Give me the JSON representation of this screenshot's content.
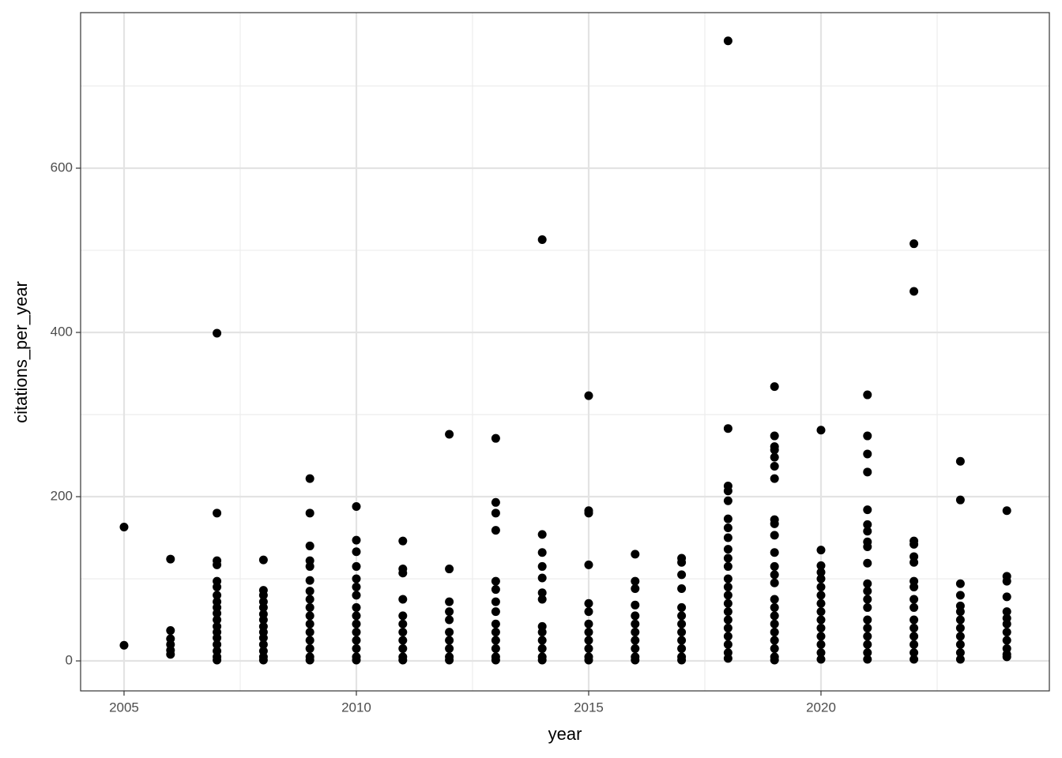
{
  "chart_data": {
    "type": "scatter",
    "x_label": "year",
    "y_label": "citations_per_year",
    "xlim": [
      2004.065,
      2024.915
    ],
    "ylim": [
      -36.5,
      789.4
    ],
    "xticks": [
      2005,
      2010,
      2015,
      2020
    ],
    "yticks": [
      0,
      200,
      400,
      600
    ],
    "x_minor_grid": [
      2007.5,
      2012.5,
      2017.5,
      2022.5
    ],
    "y_minor_grid": [
      100,
      300,
      500,
      700
    ],
    "grid": true,
    "color": "#000000",
    "x": [
      2005,
      2005,
      2006,
      2006,
      2006,
      2006,
      2006,
      2006,
      2007,
      2007,
      2007,
      2007,
      2007,
      2007,
      2007,
      2007,
      2007,
      2007,
      2007,
      2007,
      2007,
      2007,
      2007,
      2007,
      2007,
      2007,
      2008,
      2008,
      2008,
      2008,
      2008,
      2008,
      2008,
      2008,
      2008,
      2008,
      2008,
      2008,
      2008,
      2008,
      2009,
      2009,
      2009,
      2009,
      2009,
      2009,
      2009,
      2009,
      2009,
      2009,
      2009,
      2009,
      2009,
      2009,
      2009,
      2009,
      2010,
      2010,
      2010,
      2010,
      2010,
      2010,
      2010,
      2010,
      2010,
      2010,
      2010,
      2010,
      2010,
      2010,
      2010,
      2011,
      2011,
      2011,
      2011,
      2011,
      2011,
      2011,
      2011,
      2011,
      2011,
      2011,
      2012,
      2012,
      2012,
      2012,
      2012,
      2012,
      2012,
      2012,
      2012,
      2012,
      2013,
      2013,
      2013,
      2013,
      2013,
      2013,
      2013,
      2013,
      2013,
      2013,
      2013,
      2013,
      2013,
      2013,
      2014,
      2014,
      2014,
      2014,
      2014,
      2014,
      2014,
      2014,
      2014,
      2014,
      2014,
      2014,
      2014,
      2015,
      2015,
      2015,
      2015,
      2015,
      2015,
      2015,
      2015,
      2015,
      2015,
      2015,
      2015,
      2016,
      2016,
      2016,
      2016,
      2016,
      2016,
      2016,
      2016,
      2016,
      2016,
      2016,
      2017,
      2017,
      2017,
      2017,
      2017,
      2017,
      2017,
      2017,
      2017,
      2017,
      2017,
      2017,
      2018,
      2018,
      2018,
      2018,
      2018,
      2018,
      2018,
      2018,
      2018,
      2018,
      2018,
      2018,
      2018,
      2018,
      2018,
      2018,
      2018,
      2018,
      2018,
      2018,
      2018,
      2018,
      2019,
      2019,
      2019,
      2019,
      2019,
      2019,
      2019,
      2019,
      2019,
      2019,
      2019,
      2019,
      2019,
      2019,
      2019,
      2019,
      2019,
      2019,
      2019,
      2019,
      2019,
      2019,
      2019,
      2020,
      2020,
      2020,
      2020,
      2020,
      2020,
      2020,
      2020,
      2020,
      2020,
      2020,
      2020,
      2020,
      2020,
      2020,
      2021,
      2021,
      2021,
      2021,
      2021,
      2021,
      2021,
      2021,
      2021,
      2021,
      2021,
      2021,
      2021,
      2021,
      2021,
      2021,
      2021,
      2021,
      2021,
      2021,
      2022,
      2022,
      2022,
      2022,
      2022,
      2022,
      2022,
      2022,
      2022,
      2022,
      2022,
      2022,
      2022,
      2022,
      2022,
      2022,
      2023,
      2023,
      2023,
      2023,
      2023,
      2023,
      2023,
      2023,
      2023,
      2023,
      2023,
      2023,
      2024,
      2024,
      2024,
      2024,
      2024,
      2024,
      2024,
      2024,
      2024,
      2024,
      2024,
      2024
    ],
    "values": [
      163,
      19,
      124,
      37,
      27,
      20,
      13,
      8,
      399,
      180,
      122,
      117,
      97,
      90,
      80,
      72,
      65,
      58,
      50,
      42,
      35,
      28,
      20,
      12,
      5,
      1,
      123,
      86,
      80,
      72,
      65,
      57,
      50,
      42,
      35,
      28,
      20,
      12,
      5,
      1,
      222,
      180,
      140,
      122,
      115,
      98,
      85,
      75,
      65,
      55,
      45,
      35,
      25,
      15,
      5,
      1,
      188,
      147,
      133,
      115,
      100,
      90,
      80,
      65,
      55,
      45,
      35,
      25,
      15,
      5,
      1,
      146,
      112,
      107,
      75,
      55,
      45,
      35,
      25,
      15,
      5,
      1,
      276,
      112,
      72,
      60,
      50,
      35,
      25,
      15,
      5,
      1,
      271,
      193,
      180,
      159,
      97,
      87,
      72,
      60,
      45,
      35,
      25,
      15,
      5,
      1,
      513,
      154,
      132,
      115,
      101,
      83,
      75,
      42,
      35,
      25,
      15,
      5,
      1,
      323,
      183,
      180,
      117,
      70,
      60,
      45,
      35,
      25,
      15,
      5,
      1,
      130,
      97,
      88,
      68,
      55,
      45,
      35,
      25,
      15,
      5,
      1,
      125,
      120,
      105,
      88,
      65,
      55,
      45,
      35,
      25,
      15,
      5,
      1,
      755,
      283,
      213,
      207,
      195,
      173,
      162,
      150,
      136,
      125,
      115,
      100,
      90,
      80,
      70,
      60,
      50,
      40,
      30,
      20,
      10,
      3,
      334,
      274,
      261,
      257,
      248,
      237,
      222,
      172,
      167,
      153,
      132,
      115,
      105,
      95,
      75,
      65,
      55,
      45,
      35,
      25,
      15,
      5,
      1,
      281,
      135,
      116,
      108,
      100,
      90,
      80,
      70,
      60,
      50,
      40,
      30,
      20,
      10,
      2,
      324,
      274,
      252,
      230,
      184,
      166,
      158,
      145,
      139,
      119,
      94,
      85,
      75,
      65,
      50,
      40,
      30,
      20,
      10,
      2,
      508,
      450,
      146,
      142,
      127,
      120,
      97,
      90,
      75,
      65,
      50,
      40,
      30,
      20,
      10,
      2,
      243,
      196,
      94,
      80,
      67,
      60,
      50,
      40,
      30,
      20,
      10,
      2,
      183,
      103,
      97,
      78,
      60,
      52,
      45,
      35,
      25,
      15,
      8,
      5
    ]
  }
}
